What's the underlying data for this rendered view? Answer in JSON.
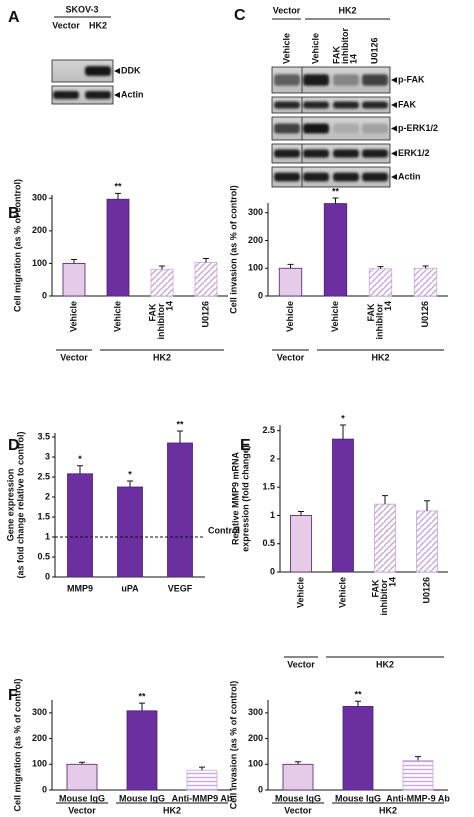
{
  "blots": [
    {
      "panel": "A",
      "header": "SKOV-3",
      "lanes": [
        "Vector",
        "HK2"
      ],
      "rows": [
        "DDK",
        "Actin"
      ]
    },
    {
      "panel": "C",
      "groups": [
        {
          "name": "Vector",
          "lanes": [
            "Vehicle"
          ]
        },
        {
          "name": "HK2",
          "lanes": [
            "Vehicle",
            "FAK inhibitor 14",
            "U0126"
          ]
        }
      ],
      "rows": [
        "p-FAK",
        "FAK",
        "p-ERK1/2",
        "ERK1/2",
        "Actin"
      ]
    }
  ],
  "chart_data": [
    {
      "type": "bar",
      "panel": "B",
      "ylabel": [
        "Cell migration (as % of control)"
      ],
      "groups": [
        {
          "name": "Vector",
          "categories": [
            "Vehicle"
          ]
        },
        {
          "name": "HK2",
          "categories": [
            "Vehicle",
            "FAK inhibitor 14",
            "U0126"
          ]
        }
      ],
      "values": [
        100,
        297,
        82,
        103
      ],
      "errors": [
        12,
        18,
        10,
        12
      ],
      "significance": [
        null,
        "**",
        null,
        null
      ],
      "colors": [
        "#e6cbe8",
        "#6b2fa0",
        "#c9a6dc",
        "#c9a6dc"
      ],
      "bar_styles": [
        "solid",
        "solid",
        "diagonal",
        "diagonal"
      ],
      "ylim": [
        0,
        310
      ],
      "yticks": [
        0,
        100,
        200,
        300
      ]
    },
    {
      "type": "bar",
      "ylabel": [
        "Cell invasion (as % of control)"
      ],
      "groups": [
        {
          "name": "Vector",
          "categories": [
            "Vehicle"
          ]
        },
        {
          "name": "HK2",
          "categories": [
            "Vehicle",
            "FAK inhibitor 14",
            "U0126"
          ]
        }
      ],
      "values": [
        100,
        333,
        98,
        100
      ],
      "errors": [
        14,
        20,
        8,
        8
      ],
      "significance": [
        null,
        "**",
        null,
        null
      ],
      "colors": [
        "#e6cbe8",
        "#6b2fa0",
        "#c9a6dc",
        "#c9a6dc"
      ],
      "bar_styles": [
        "solid",
        "solid",
        "diagonal",
        "diagonal"
      ],
      "ylim": [
        0,
        335
      ],
      "yticks": [
        0,
        100,
        200,
        300
      ]
    },
    {
      "type": "bar",
      "panel": "D",
      "ylabel": [
        "Gene expression",
        "(as fold change relative to control)"
      ],
      "categories": [
        "MMP9",
        "uPA",
        "VEGF"
      ],
      "values": [
        2.58,
        2.25,
        3.35
      ],
      "errors": [
        0.2,
        0.15,
        0.3
      ],
      "significance": [
        "*",
        "*",
        "**"
      ],
      "colors": [
        "#6b2fa0",
        "#6b2fa0",
        "#6b2fa0"
      ],
      "bar_styles": [
        "solid",
        "solid",
        "solid"
      ],
      "reference": {
        "value": 1,
        "label": "Control"
      },
      "ylim": [
        0,
        3.6
      ],
      "yticks": [
        0,
        0.5,
        1,
        1.5,
        2,
        2.5,
        3,
        3.5
      ]
    },
    {
      "type": "bar",
      "panel": "E",
      "ylabel": [
        "Relative MMP9 mRNA",
        "expression (fold change)"
      ],
      "groups": [
        {
          "name": "Vector",
          "categories": [
            "Vehicle"
          ]
        },
        {
          "name": "HK2",
          "categories": [
            "Vehicle",
            "FAK inhibitor 14",
            "U0126"
          ]
        }
      ],
      "values": [
        1.0,
        2.35,
        1.2,
        1.08
      ],
      "errors": [
        0.07,
        0.25,
        0.15,
        0.18
      ],
      "significance": [
        null,
        "*",
        null,
        null
      ],
      "colors": [
        "#e6cbe8",
        "#6b2fa0",
        "#c9a6dc",
        "#c9a6dc"
      ],
      "bar_styles": [
        "solid",
        "solid",
        "diagonal",
        "diagonal"
      ],
      "ylim": [
        0,
        2.6
      ],
      "yticks": [
        0,
        0.5,
        1,
        1.5,
        2,
        2.5
      ]
    },
    {
      "type": "bar",
      "panel": "F",
      "ylabel": [
        "Cell migration (as % of control)"
      ],
      "groups": [
        {
          "name": "Vector",
          "categories": [
            "Mouse IgG"
          ]
        },
        {
          "name": "HK2",
          "categories": [
            "Mouse IgG",
            "Anti-MMP9 Ab"
          ]
        }
      ],
      "values": [
        100,
        308,
        77
      ],
      "errors": [
        8,
        30,
        12
      ],
      "significance": [
        null,
        "**",
        null
      ],
      "colors": [
        "#e6cbe8",
        "#6b2fa0",
        "#c9a6dc"
      ],
      "bar_styles": [
        "solid",
        "solid",
        "horizontal"
      ],
      "ylim": [
        0,
        350
      ],
      "yticks": [
        0,
        100,
        200,
        300
      ]
    },
    {
      "type": "bar",
      "ylabel": [
        "Cell invasion (as % of control)"
      ],
      "groups": [
        {
          "name": "Vector",
          "categories": [
            "Mouse IgG"
          ]
        },
        {
          "name": "HK2",
          "categories": [
            "Mouse IgG",
            "Anti-MMP-9 Ab"
          ]
        }
      ],
      "values": [
        100,
        325,
        115
      ],
      "errors": [
        10,
        20,
        15
      ],
      "significance": [
        null,
        "**",
        null
      ],
      "colors": [
        "#e6cbe8",
        "#6b2fa0",
        "#c9a6dc"
      ],
      "bar_styles": [
        "solid",
        "solid",
        "horizontal"
      ],
      "ylim": [
        0,
        350
      ],
      "yticks": [
        0,
        100,
        200,
        300
      ]
    }
  ]
}
